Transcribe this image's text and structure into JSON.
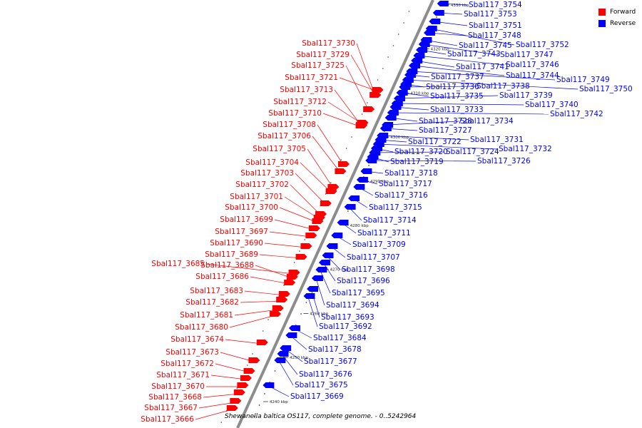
{
  "legend": {
    "forward_label": "Forward",
    "reverse_label": "Reverse",
    "forward_color": "#ff0000",
    "reverse_color": "#0000ff"
  },
  "caption": "Shewanella baltica OS117, complete genome. - 0..5242964",
  "axis": {
    "unit": "kbp",
    "ticks": [
      4240,
      4250,
      4260,
      4270,
      4280,
      4290,
      4300,
      4310,
      4320,
      4330
    ]
  },
  "forward_genes": [
    "Sbal117_3730",
    "Sbal117_3729",
    "Sbal117_3725",
    "Sbal117_3721",
    "Sbal117_3713",
    "Sbal117_3712",
    "Sbal117_3710",
    "Sbal117_3708",
    "Sbal117_3706",
    "Sbal117_3705",
    "Sbal117_3704",
    "Sbal117_3703",
    "Sbal117_3702",
    "Sbal117_3701",
    "Sbal117_3700",
    "Sbal117_3699",
    "Sbal117_3697",
    "Sbal117_3690",
    "Sbal117_3689",
    "Sbal117_3685",
    "Sbal117_3688",
    "Sbal117_3686",
    "Sbal117_3683",
    "Sbal117_3682",
    "Sbal117_3681",
    "Sbal117_3680",
    "Sbal117_3674",
    "Sbal117_3673",
    "Sbal117_3672",
    "Sbal117_3671",
    "Sbal117_3670",
    "Sbal117_3668",
    "Sbal117_3667",
    "Sbal117_3666"
  ],
  "reverse_genes": [
    "Sbal117_3754",
    "Sbal117_3753",
    "Sbal117_3751",
    "Sbal117_3752",
    "Sbal117_3748",
    "Sbal117_3745",
    "Sbal117_3747",
    "Sbal117_3743",
    "Sbal117_3746",
    "Sbal117_3741",
    "Sbal117_3744",
    "Sbal117_3749",
    "Sbal117_3737",
    "Sbal117_3750",
    "Sbal117_3736",
    "Sbal117_3738",
    "Sbal117_3735",
    "Sbal117_3739",
    "Sbal117_3740",
    "Sbal117_3733",
    "Sbal117_3742",
    "Sbal117_3728",
    "Sbal117_3734",
    "Sbal117_3727",
    "Sbal117_3731",
    "Sbal117_3722",
    "Sbal117_3732",
    "Sbal117_3720",
    "Sbal117_3724",
    "Sbal117_3719",
    "Sbal117_3726",
    "Sbal117_3718",
    "Sbal117_3717",
    "Sbal117_3716",
    "Sbal117_3715",
    "Sbal117_3714",
    "Sbal117_3711",
    "Sbal117_3709",
    "Sbal117_3707",
    "Sbal117_3698",
    "Sbal117_3696",
    "Sbal117_3695",
    "Sbal117_3694",
    "Sbal117_3693",
    "Sbal117_3692",
    "Sbal117_3684",
    "Sbal117_3678",
    "Sbal117_3677",
    "Sbal117_3676",
    "Sbal117_3675",
    "Sbal117_3669"
  ]
}
